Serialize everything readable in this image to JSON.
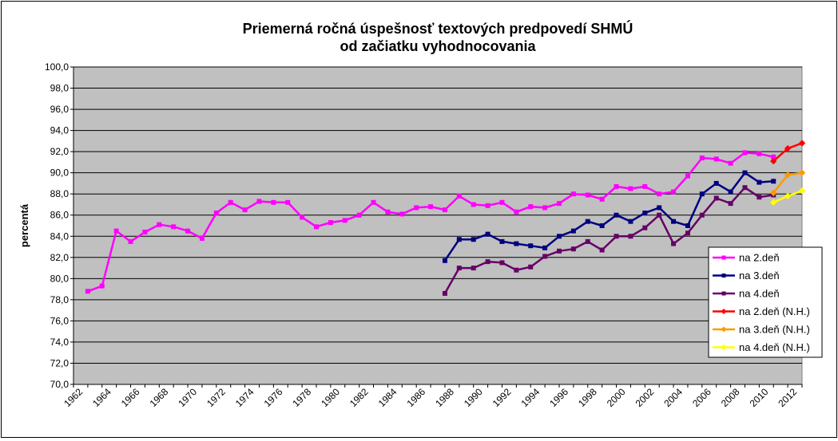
{
  "chart_data": {
    "type": "line",
    "title_lines": [
      "Priemerná ročná úspešnosť textových predpovedí SHMÚ",
      "od začiatku vyhodnocovania"
    ],
    "xlabel": "",
    "ylabel": "percentá",
    "xlim": [
      1962,
      2012
    ],
    "ylim": [
      70,
      100
    ],
    "y_ticks": [
      "70,0",
      "72,0",
      "74,0",
      "76,0",
      "78,0",
      "80,0",
      "82,0",
      "84,0",
      "86,0",
      "88,0",
      "90,0",
      "92,0",
      "94,0",
      "96,0",
      "98,0",
      "100,0"
    ],
    "x_ticks": [
      "1962",
      "1964",
      "1966",
      "1968",
      "1970",
      "1972",
      "1974",
      "1976",
      "1978",
      "1980",
      "1982",
      "1984",
      "1986",
      "1988",
      "1990",
      "1992",
      "1994",
      "1996",
      "1998",
      "2000",
      "2002",
      "2004",
      "2006",
      "2008",
      "2010",
      "2012"
    ],
    "grid": "horizontal",
    "plot_background": "#C0C0C0",
    "legend_position": "right",
    "series": [
      {
        "name": "na 2.deň",
        "color": "#FF00FF",
        "marker": "square",
        "x": [
          1963,
          1964,
          1965,
          1966,
          1967,
          1968,
          1969,
          1970,
          1971,
          1972,
          1973,
          1974,
          1975,
          1976,
          1977,
          1978,
          1979,
          1980,
          1981,
          1982,
          1983,
          1984,
          1985,
          1986,
          1987,
          1988,
          1989,
          1990,
          1991,
          1992,
          1993,
          1994,
          1995,
          1996,
          1997,
          1998,
          1999,
          2000,
          2001,
          2002,
          2003,
          2004,
          2005,
          2006,
          2007,
          2008,
          2009,
          2010,
          2011
        ],
        "values": [
          78.8,
          79.3,
          84.5,
          83.5,
          84.4,
          85.1,
          84.9,
          84.5,
          83.8,
          86.2,
          87.2,
          86.5,
          87.3,
          87.2,
          87.2,
          85.8,
          84.9,
          85.3,
          85.5,
          86.0,
          87.2,
          86.3,
          86.1,
          86.7,
          86.8,
          86.5,
          87.8,
          87.0,
          86.9,
          87.2,
          86.3,
          86.8,
          86.7,
          87.1,
          88.0,
          87.9,
          87.5,
          88.7,
          88.5,
          88.7,
          88.0,
          88.2,
          89.7,
          91.4,
          91.3,
          90.9,
          91.9,
          91.8,
          91.5
        ]
      },
      {
        "name": "na 3.deň",
        "color": "#000080",
        "marker": "square",
        "x": [
          1988,
          1989,
          1990,
          1991,
          1992,
          1993,
          1994,
          1995,
          1996,
          1997,
          1998,
          1999,
          2000,
          2001,
          2002,
          2003,
          2004,
          2005,
          2006,
          2007,
          2008,
          2009,
          2010,
          2011
        ],
        "values": [
          81.7,
          83.7,
          83.7,
          84.2,
          83.5,
          83.3,
          83.1,
          82.9,
          84.0,
          84.5,
          85.4,
          85.0,
          86.0,
          85.4,
          86.2,
          86.7,
          85.4,
          85.0,
          88.0,
          89.0,
          88.2,
          90.0,
          89.1,
          89.2
        ]
      },
      {
        "name": "na 4.deň",
        "color": "#660066",
        "marker": "square",
        "x": [
          1988,
          1989,
          1990,
          1991,
          1992,
          1993,
          1994,
          1995,
          1996,
          1997,
          1998,
          1999,
          2000,
          2001,
          2002,
          2003,
          2004,
          2005,
          2006,
          2007,
          2008,
          2009,
          2010,
          2011
        ],
        "values": [
          78.6,
          81.0,
          81.0,
          81.6,
          81.5,
          80.8,
          81.1,
          82.1,
          82.6,
          82.8,
          83.5,
          82.7,
          84.0,
          84.0,
          84.8,
          86.0,
          83.3,
          84.3,
          86.0,
          87.6,
          87.1,
          88.6,
          87.7,
          87.9
        ]
      },
      {
        "name": "na 2.deň (N.H.)",
        "color": "#FF0000",
        "marker": "diamond",
        "x": [
          2011,
          2012,
          2013
        ],
        "values": [
          91.1,
          92.3,
          92.8
        ]
      },
      {
        "name": "na 3.deň (N.H.)",
        "color": "#FF9900",
        "marker": "diamond",
        "x": [
          2011,
          2012,
          2013
        ],
        "values": [
          88.1,
          89.8,
          90.0
        ]
      },
      {
        "name": "na 4.deň (N.H.)",
        "color": "#FFFF00",
        "marker": "diamond",
        "x": [
          2011,
          2012,
          2013
        ],
        "values": [
          87.2,
          87.8,
          88.3
        ]
      }
    ]
  }
}
